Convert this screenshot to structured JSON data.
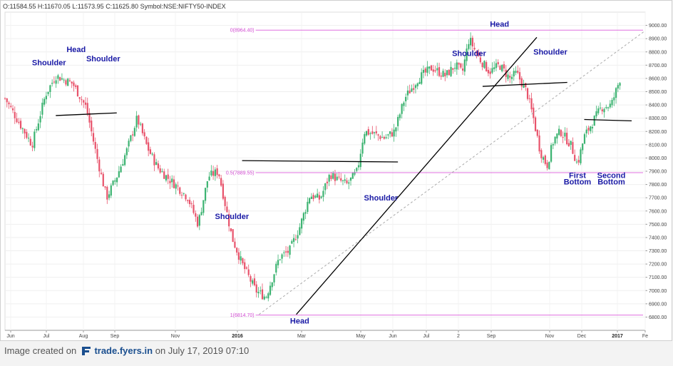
{
  "header": {
    "open": "O:11584.55",
    "high": "H:11670.05",
    "low": "L:11573.95",
    "close": "C:11625.80",
    "symbol": "Symbol:NSE:NIFTY50-INDEX"
  },
  "footer": {
    "prefix": "Image created on",
    "brand": "trade.fyers.in",
    "suffix": "on July 17, 2019 07:10"
  },
  "chart_data": {
    "type": "candlestick",
    "x_axis": {
      "tick_labels": [
        "Jun",
        "Jul",
        "Aug",
        "Sep",
        "Nov",
        "2016",
        "Mar",
        "May",
        "Jun",
        "Jul",
        "2",
        "Sep",
        "Nov",
        "Dec",
        "2017",
        "Fe"
      ]
    },
    "y_axis": {
      "range": [
        6700,
        9100
      ],
      "ticks": [
        6800,
        6900,
        7000,
        7100,
        7200,
        7300,
        7400,
        7500,
        7600,
        7700,
        7800,
        7900,
        8000,
        8100,
        8200,
        8300,
        8400,
        8500,
        8600,
        8700,
        8800,
        8900,
        9000
      ],
      "tick_labels": [
        "6800.00",
        "6900.00",
        "7000.00",
        "7100.00",
        "7200.00",
        "7300.00",
        "7400.00",
        "7500.00",
        "7600.00",
        "7700.00",
        "7800.00",
        "7900.00",
        "8000.00",
        "8100.00",
        "8200.00",
        "8300.00",
        "8400.00",
        "8500.00",
        "8600.00",
        "8700.00",
        "8800.00",
        "8900.00",
        "9000.00"
      ]
    },
    "grid": true,
    "colors": {
      "up": "#3cb371",
      "down": "#e8536b",
      "fib": "#e070e0",
      "trend": "#000000",
      "annotation": "#1a1aa6"
    },
    "fib_levels": [
      {
        "label": "0(8964.40)",
        "value": 8964.4
      },
      {
        "label": "0.5(7889.55)",
        "value": 7889.55
      },
      {
        "label": "1(6814.70)",
        "value": 6814.7
      }
    ],
    "close_path": [
      [
        0,
        8450
      ],
      [
        0.05,
        8230
      ],
      [
        0.08,
        8100
      ],
      [
        0.12,
        8480
      ],
      [
        0.15,
        8620
      ],
      [
        0.2,
        8560
      ],
      [
        0.24,
        8380
      ],
      [
        0.27,
        8020
      ],
      [
        0.3,
        7700
      ],
      [
        0.33,
        7860
      ],
      [
        0.36,
        8060
      ],
      [
        0.39,
        8300
      ],
      [
        0.42,
        8080
      ],
      [
        0.45,
        7930
      ],
      [
        0.48,
        7850
      ],
      [
        0.51,
        7780
      ],
      [
        0.54,
        7700
      ],
      [
        0.57,
        7500
      ],
      [
        0.6,
        7860
      ],
      [
        0.63,
        7900
      ],
      [
        0.67,
        7400
      ],
      [
        0.7,
        7200
      ],
      [
        0.74,
        7000
      ],
      [
        0.77,
        6950
      ],
      [
        0.79,
        7100
      ],
      [
        0.81,
        7250
      ],
      [
        0.84,
        7300
      ],
      [
        0.87,
        7480
      ],
      [
        0.9,
        7720
      ],
      [
        0.93,
        7690
      ],
      [
        0.96,
        7880
      ],
      [
        0.98,
        7840
      ],
      [
        1.01,
        7800
      ],
      [
        1.04,
        7900
      ],
      [
        1.06,
        8200
      ],
      [
        1.09,
        8180
      ],
      [
        1.12,
        8150
      ],
      [
        1.15,
        8200
      ],
      [
        1.18,
        8450
      ],
      [
        1.22,
        8600
      ],
      [
        1.26,
        8680
      ],
      [
        1.3,
        8620
      ],
      [
        1.33,
        8700
      ],
      [
        1.35,
        8640
      ],
      [
        1.37,
        8900
      ],
      [
        1.4,
        8750
      ],
      [
        1.43,
        8650
      ],
      [
        1.46,
        8700
      ],
      [
        1.49,
        8600
      ],
      [
        1.51,
        8640
      ],
      [
        1.54,
        8500
      ],
      [
        1.56,
        8300
      ],
      [
        1.58,
        8050
      ],
      [
        1.6,
        7940
      ],
      [
        1.62,
        8140
      ],
      [
        1.64,
        8200
      ],
      [
        1.67,
        8100
      ],
      [
        1.69,
        7950
      ],
      [
        1.71,
        8160
      ],
      [
        1.73,
        8250
      ],
      [
        1.76,
        8380
      ],
      [
        1.79,
        8400
      ],
      [
        1.82,
        8630
      ]
    ],
    "trend_lines": [
      {
        "points": [
          [
            0.15,
            8320
          ],
          [
            0.33,
            8340
          ]
        ]
      },
      {
        "points": [
          [
            0.7,
            7980
          ],
          [
            1.16,
            7970
          ]
        ]
      },
      {
        "points": [
          [
            0.86,
            6820
          ],
          [
            1.57,
            8910
          ]
        ]
      },
      {
        "points": [
          [
            1.41,
            8540
          ],
          [
            1.66,
            8570
          ]
        ]
      },
      {
        "points": [
          [
            1.71,
            8290
          ],
          [
            1.85,
            8280
          ]
        ]
      }
    ],
    "dashed_line": {
      "points": [
        [
          0.75,
          6820
        ],
        [
          1.89,
          8960
        ]
      ]
    },
    "annotations": [
      {
        "text": "Head",
        "at": [
          0.21,
          8800
        ]
      },
      {
        "text": "Shoulder",
        "at": [
          0.13,
          8700
        ]
      },
      {
        "text": "Shoulder",
        "at": [
          0.29,
          8730
        ]
      },
      {
        "text": "Shoulder",
        "at": [
          0.67,
          7540
        ]
      },
      {
        "text": "Head",
        "at": [
          0.87,
          6750
        ]
      },
      {
        "text": "Shoulder",
        "at": [
          1.11,
          7680
        ]
      },
      {
        "text": "Shoulder",
        "at": [
          1.37,
          8770
        ]
      },
      {
        "text": "Head",
        "at": [
          1.46,
          8990
        ]
      },
      {
        "text": "Shoulder",
        "at": [
          1.61,
          8780
        ]
      },
      {
        "text": "First",
        "at": [
          1.69,
          7850
        ]
      },
      {
        "text": "Bottom",
        "at": [
          1.69,
          7800
        ]
      },
      {
        "text": "Second",
        "at": [
          1.79,
          7850
        ]
      },
      {
        "text": "Bottom",
        "at": [
          1.79,
          7800
        ]
      }
    ]
  }
}
